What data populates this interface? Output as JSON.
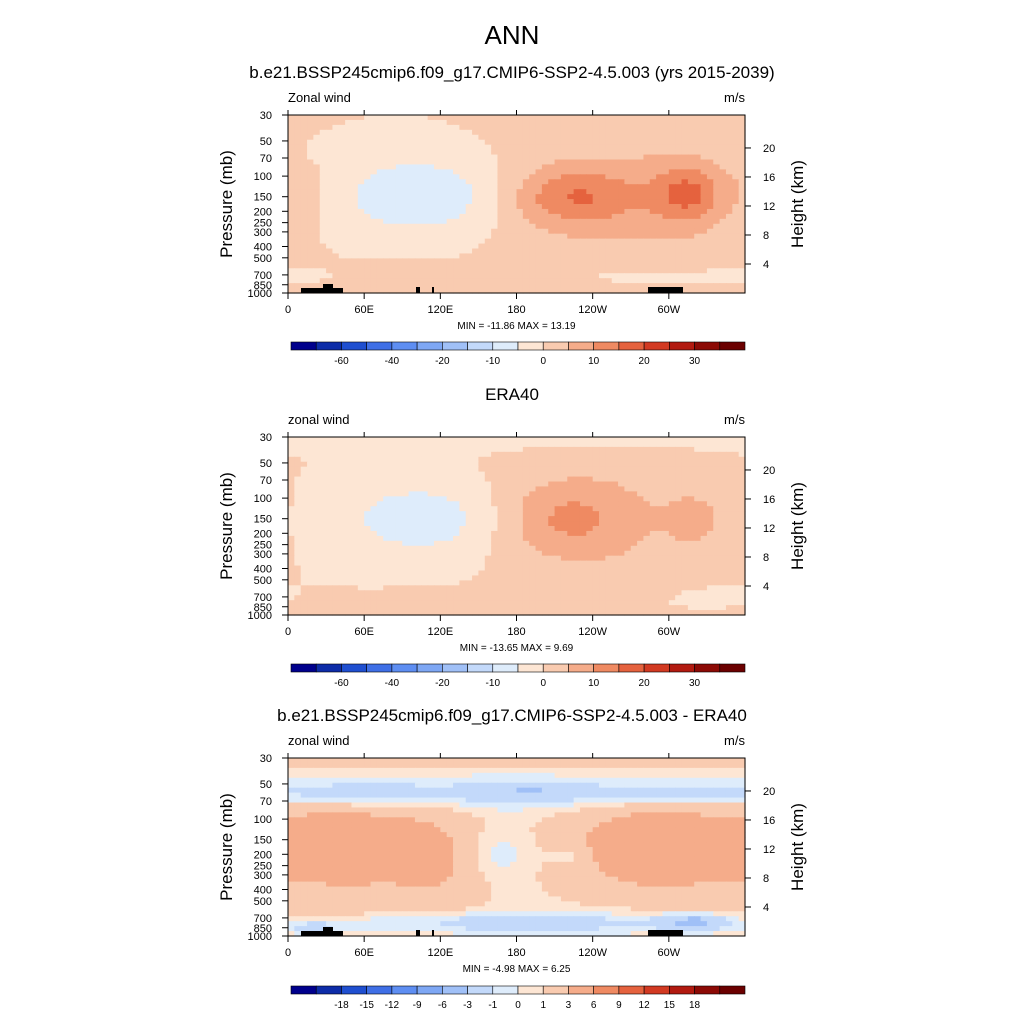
{
  "main_title": "ANN",
  "chart_data": [
    {
      "type": "heatmap",
      "title": "b.e21.BSSP245cmip6.f09_g17.CMIP6-SSP2-4.5.003 (yrs 2015-2039)",
      "left_label": "Zonal wind",
      "right_label": "m/s",
      "ylabel": "Pressure (mb)",
      "y2label": "Height (km)",
      "x_ticks": [
        "0",
        "60E",
        "120E",
        "180",
        "120W",
        "60W"
      ],
      "y_ticks": [
        "30",
        "50",
        "70",
        "100",
        "150",
        "200",
        "250",
        "300",
        "400",
        "500",
        "700",
        "850",
        "1000"
      ],
      "y2_ticks": [
        "20",
        "16",
        "12",
        "8",
        "4"
      ],
      "min_max": "MIN = -11.86  MAX =  13.19",
      "contour_levels": [
        -70,
        -60,
        -50,
        -40,
        -30,
        -20,
        -15,
        -10,
        -5,
        0,
        5,
        10,
        15,
        20,
        25,
        30,
        35
      ],
      "colorbar_labels": [
        "-60",
        "-40",
        "-20",
        "-10",
        "0",
        "10",
        "20",
        "30"
      ],
      "colors": [
        "#00008c",
        "#0d2ca8",
        "#1f4fd0",
        "#3f6fe6",
        "#5e8ef2",
        "#7ea7f4",
        "#a0c0f7",
        "#c3d9fa",
        "#deecfb",
        "#fde6d4",
        "#f9cbb0",
        "#f5ac8a",
        "#ef8a62",
        "#e5623e",
        "#d23a22",
        "#b21a10",
        "#8c0a05",
        "#6b0000"
      ],
      "min": -11.86,
      "max": 13.19,
      "features": [
        {
          "lon": 110,
          "p": 150,
          "value": -7.5,
          "dlon": 45,
          "dlogp": 0.22
        },
        {
          "lon": 100,
          "p": 140,
          "value": -3,
          "dlon": 75,
          "dlogp": 0.38
        },
        {
          "lon": 225,
          "p": 150,
          "value": 11,
          "dlon": 35,
          "dlogp": 0.17
        },
        {
          "lon": 315,
          "p": 140,
          "value": 11,
          "dlon": 18,
          "dlogp": 0.16
        },
        {
          "lon": 245,
          "p": 160,
          "value": 5,
          "dlon": 70,
          "dlogp": 0.4
        },
        {
          "lon": 315,
          "p": 150,
          "value": 3,
          "dlon": 30,
          "dlogp": 0.35
        },
        {
          "lon": 100,
          "p": 750,
          "value": 4,
          "dlon": 50,
          "dlogp": 0.08
        },
        {
          "lon": 40,
          "p": 60,
          "value": -2,
          "dlon": 25,
          "dlogp": 0.08
        },
        {
          "lon": 5,
          "p": 130,
          "value": 2.5,
          "dlon": 18,
          "dlogp": 0.25
        },
        {
          "lon": 300,
          "p": 720,
          "value": -3,
          "dlon": 60,
          "dlogp": 0.05
        },
        {
          "lon": 10,
          "p": 700,
          "value": -2,
          "dlon": 20,
          "dlogp": 0.05
        }
      ]
    },
    {
      "type": "heatmap",
      "title": "ERA40",
      "left_label": "zonal wind",
      "right_label": "m/s",
      "ylabel": "Pressure (mb)",
      "y2label": "Height (km)",
      "x_ticks": [
        "0",
        "60E",
        "120E",
        "180",
        "120W",
        "60W"
      ],
      "y_ticks": [
        "30",
        "50",
        "70",
        "100",
        "150",
        "200",
        "250",
        "300",
        "400",
        "500",
        "700",
        "850",
        "1000"
      ],
      "y2_ticks": [
        "20",
        "16",
        "12",
        "8",
        "4"
      ],
      "min_max": "MIN = -13.65  MAX =   9.69",
      "contour_levels": [
        -70,
        -60,
        -50,
        -40,
        -30,
        -20,
        -15,
        -10,
        -5,
        0,
        5,
        10,
        15,
        20,
        25,
        30,
        35
      ],
      "colorbar_labels": [
        "-60",
        "-40",
        "-20",
        "-10",
        "0",
        "10",
        "20",
        "30"
      ],
      "colors": [
        "#00008c",
        "#0d2ca8",
        "#1f4fd0",
        "#3f6fe6",
        "#5e8ef2",
        "#7ea7f4",
        "#a0c0f7",
        "#c3d9fa",
        "#deecfb",
        "#fde6d4",
        "#f9cbb0",
        "#f5ac8a",
        "#ef8a62",
        "#e5623e",
        "#d23a22",
        "#b21a10",
        "#8c0a05",
        "#6b0000"
      ],
      "min": -13.65,
      "max": 9.69,
      "features": [
        {
          "lon": 110,
          "p": 150,
          "value": -6.5,
          "dlon": 40,
          "dlogp": 0.2
        },
        {
          "lon": 100,
          "p": 160,
          "value": -3,
          "dlon": 80,
          "dlogp": 0.45
        },
        {
          "lon": 220,
          "p": 150,
          "value": 8,
          "dlon": 35,
          "dlogp": 0.22
        },
        {
          "lon": 320,
          "p": 150,
          "value": 6,
          "dlon": 15,
          "dlogp": 0.15
        },
        {
          "lon": 240,
          "p": 160,
          "value": 4,
          "dlon": 70,
          "dlogp": 0.45
        },
        {
          "lon": 100,
          "p": 800,
          "value": 3,
          "dlon": 60,
          "dlogp": 0.08
        },
        {
          "lon": 200,
          "p": 800,
          "value": -2,
          "dlon": 50,
          "dlogp": 0.06
        },
        {
          "lon": 330,
          "p": 720,
          "value": -2,
          "dlon": 30,
          "dlogp": 0.08
        },
        {
          "lon": 180,
          "p": 30,
          "value": -3,
          "dlon": 400,
          "dlogp": 0.08
        }
      ]
    },
    {
      "type": "heatmap",
      "title": "b.e21.BSSP245cmip6.f09_g17.CMIP6-SSP2-4.5.003 - ERA40",
      "left_label": "zonal wind",
      "right_label": "m/s",
      "ylabel": "Pressure (mb)",
      "y2label": "Height (km)",
      "x_ticks": [
        "0",
        "60E",
        "120E",
        "180",
        "120W",
        "60W"
      ],
      "y_ticks": [
        "30",
        "50",
        "70",
        "100",
        "150",
        "200",
        "250",
        "300",
        "400",
        "500",
        "700",
        "850",
        "1000"
      ],
      "y2_ticks": [
        "20",
        "16",
        "12",
        "8",
        "4"
      ],
      "min_max": "MIN =  -4.98  MAX =   6.25",
      "contour_levels": [
        -21,
        -18,
        -15,
        -12,
        -9,
        -6,
        -3,
        -1,
        0,
        1,
        3,
        6,
        9,
        12,
        15,
        18,
        21
      ],
      "colorbar_labels": [
        "-18",
        "-15",
        "-12",
        "-9",
        "-6",
        "-3",
        "-1",
        "0",
        "1",
        "3",
        "6",
        "9",
        "12",
        "15",
        "18"
      ],
      "colors": [
        "#00008c",
        "#0d2ca8",
        "#1f4fd0",
        "#3f6fe6",
        "#5e8ef2",
        "#7ea7f4",
        "#a0c0f7",
        "#c3d9fa",
        "#deecfb",
        "#fde6d4",
        "#f9cbb0",
        "#f5ac8a",
        "#ef8a62",
        "#e5623e",
        "#d23a22",
        "#b21a10",
        "#8c0a05",
        "#6b0000"
      ],
      "min": -4.98,
      "max": 6.25,
      "features": [
        {
          "lon": 180,
          "p": 30,
          "value": 2,
          "dlon": 400,
          "dlogp": 0.05
        },
        {
          "lon": 180,
          "p": 60,
          "value": -2.5,
          "dlon": 400,
          "dlogp": 0.1
        },
        {
          "lon": 60,
          "p": 60,
          "value": -1.5,
          "dlon": 30,
          "dlogp": 0.06
        },
        {
          "lon": 190,
          "p": 58,
          "value": -1.5,
          "dlon": 25,
          "dlogp": 0.05
        },
        {
          "lon": 300,
          "p": 60,
          "value": -1.5,
          "dlon": 40,
          "dlogp": 0.05
        },
        {
          "lon": 50,
          "p": 170,
          "value": 4.5,
          "dlon": 45,
          "dlogp": 0.28
        },
        {
          "lon": 290,
          "p": 170,
          "value": 4.5,
          "dlon": 50,
          "dlogp": 0.3
        },
        {
          "lon": 120,
          "p": 250,
          "value": 2,
          "dlon": 25,
          "dlogp": 0.35
        },
        {
          "lon": 165,
          "p": 200,
          "value": -1.5,
          "dlon": 20,
          "dlogp": 0.15
        },
        {
          "lon": 220,
          "p": 210,
          "value": -1.5,
          "dlon": 12,
          "dlogp": 0.05
        },
        {
          "lon": 180,
          "p": 770,
          "value": -3,
          "dlon": 90,
          "dlogp": 0.07
        },
        {
          "lon": 320,
          "p": 760,
          "value": -4,
          "dlon": 20,
          "dlogp": 0.05
        },
        {
          "lon": 40,
          "p": 550,
          "value": 1.5,
          "dlon": 40,
          "dlogp": 0.05
        },
        {
          "lon": 20,
          "p": 850,
          "value": -2,
          "dlon": 15,
          "dlogp": 0.04
        }
      ]
    }
  ]
}
